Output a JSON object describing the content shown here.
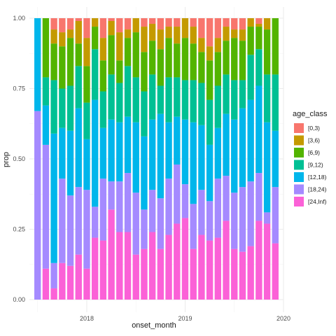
{
  "chart_data": {
    "type": "bar",
    "stacked": true,
    "title": "",
    "xlabel": "onset_month",
    "ylabel": "prop",
    "ylim": [
      0,
      1
    ],
    "y_ticks": [
      "0.00",
      "0.25",
      "0.50",
      "0.75",
      "1.00"
    ],
    "x_ticks": [
      "2018",
      "2019",
      "2020"
    ],
    "xlim": [
      "2017-06",
      "2020-01"
    ],
    "grid": true,
    "legend_position": "right",
    "legend_title": "age_class",
    "categories": [
      "2017-07",
      "2017-08",
      "2017-09",
      "2017-10",
      "2017-11",
      "2017-12",
      "2018-01",
      "2018-02",
      "2018-03",
      "2018-04",
      "2018-05",
      "2018-06",
      "2018-07",
      "2018-08",
      "2018-09",
      "2018-10",
      "2018-11",
      "2018-12",
      "2019-01",
      "2019-02",
      "2019-03",
      "2019-04",
      "2019-05",
      "2019-06",
      "2019-07",
      "2019-08",
      "2019-09",
      "2019-10",
      "2019-11",
      "2019-12"
    ],
    "series": [
      {
        "name": "[0,3)",
        "color": "#F8766D",
        "values": [
          0.0,
          0.0,
          0.04,
          0.05,
          0.04,
          0.01,
          0.07,
          0.0,
          0.07,
          0.01,
          0.05,
          0.04,
          0.0,
          0.03,
          0.02,
          0.04,
          0.03,
          0.03,
          0.0,
          0.03,
          0.07,
          0.1,
          0.07,
          0.03,
          0.04,
          0.04,
          0.0,
          0.02,
          0.0,
          0.0
        ]
      },
      {
        "name": "[3,6)",
        "color": "#C49A00",
        "values": [
          0.0,
          0.0,
          0.05,
          0.05,
          0.03,
          0.08,
          0.1,
          0.03,
          0.08,
          0.05,
          0.1,
          0.03,
          0.05,
          0.09,
          0.06,
          0.07,
          0.04,
          0.06,
          0.07,
          0.06,
          0.05,
          0.05,
          0.05,
          0.05,
          0.03,
          0.04,
          0.03,
          0.01,
          0.04,
          0.0
        ]
      },
      {
        "name": "[6,9)",
        "color": "#53B400",
        "values": [
          0.0,
          0.21,
          0.13,
          0.15,
          0.17,
          0.08,
          0.13,
          0.08,
          0.11,
          0.14,
          0.08,
          0.1,
          0.16,
          0.14,
          0.12,
          0.13,
          0.14,
          0.12,
          0.15,
          0.13,
          0.11,
          0.14,
          0.12,
          0.12,
          0.15,
          0.14,
          0.1,
          0.08,
          0.16,
          0.2
        ]
      },
      {
        "name": "[9,12)",
        "color": "#00C094",
        "values": [
          0.0,
          0.1,
          0.19,
          0.14,
          0.16,
          0.15,
          0.13,
          0.18,
          0.13,
          0.16,
          0.14,
          0.18,
          0.16,
          0.16,
          0.16,
          0.1,
          0.16,
          0.14,
          0.14,
          0.15,
          0.15,
          0.16,
          0.15,
          0.14,
          0.14,
          0.1,
          0.16,
          0.13,
          0.17,
          0.2
        ]
      },
      {
        "name": "[12,18)",
        "color": "#00B6EB",
        "values": [
          0.33,
          0.14,
          0.46,
          0.18,
          0.23,
          0.28,
          0.18,
          0.38,
          0.18,
          0.22,
          0.21,
          0.2,
          0.25,
          0.26,
          0.25,
          0.3,
          0.2,
          0.17,
          0.23,
          0.29,
          0.23,
          0.2,
          0.18,
          0.22,
          0.26,
          0.28,
          0.29,
          0.31,
          0.32,
          0.2
        ]
      },
      {
        "name": "[18,24)",
        "color": "#A58AFF",
        "values": [
          0.67,
          0.44,
          0.09,
          0.3,
          0.25,
          0.24,
          0.28,
          0.11,
          0.22,
          0.1,
          0.18,
          0.21,
          0.22,
          0.14,
          0.15,
          0.18,
          0.2,
          0.21,
          0.12,
          0.16,
          0.16,
          0.14,
          0.21,
          0.16,
          0.2,
          0.23,
          0.23,
          0.17,
          0.04,
          0.2
        ]
      },
      {
        "name": "[24,Inf)",
        "color": "#FB61D7",
        "values": [
          0.0,
          0.11,
          0.04,
          0.13,
          0.12,
          0.16,
          0.11,
          0.22,
          0.21,
          0.32,
          0.24,
          0.24,
          0.16,
          0.18,
          0.24,
          0.18,
          0.23,
          0.27,
          0.29,
          0.18,
          0.23,
          0.21,
          0.22,
          0.28,
          0.18,
          0.17,
          0.19,
          0.28,
          0.27,
          0.2
        ]
      }
    ]
  }
}
